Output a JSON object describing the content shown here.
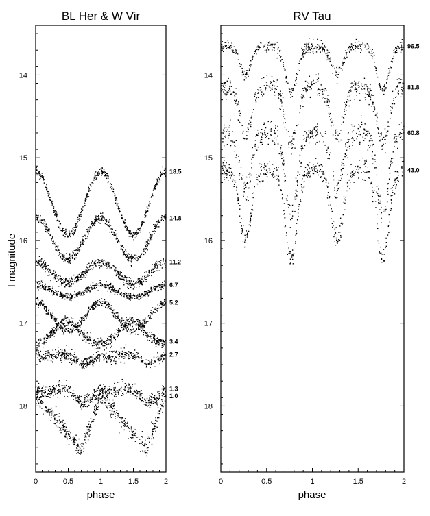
{
  "chart_data": [
    {
      "type": "scatter",
      "title": "BL Her  &  W Vir",
      "xlabel": "phase",
      "ylabel": "I magnitude",
      "xlim": [
        0,
        2
      ],
      "ylim": [
        18.8,
        13.4
      ],
      "y_inverted": true,
      "x_ticks": [
        "0",
        "0.5",
        "1",
        "1.5",
        "2"
      ],
      "y_ticks": [
        "14",
        "15",
        "16",
        "17",
        "18"
      ],
      "series": [
        {
          "name": "18.5",
          "shape": "sinusoid",
          "mean": 15.55,
          "amp": 0.38,
          "tri": 0,
          "scatter": 0.025
        },
        {
          "name": "14.8",
          "shape": "sinusoid",
          "mean": 15.98,
          "amp": 0.25,
          "tri": 0,
          "scatter": 0.03
        },
        {
          "name": "11.2",
          "shape": "sinusoid",
          "mean": 16.39,
          "amp": 0.13,
          "tri": 0,
          "scatter": 0.03
        },
        {
          "name": "6.7",
          "shape": "sinusoid",
          "mean": 16.61,
          "amp": 0.07,
          "tri": 0,
          "scatter": 0.02
        },
        {
          "name": "5.2",
          "shape": "sinusoid",
          "mean": 16.92,
          "amp": 0.17,
          "tri": 0,
          "scatter": 0.025
        },
        {
          "name": "3.4",
          "shape": "sawtooth",
          "mean": 17.12,
          "amp": 0.26,
          "tri": 0.3,
          "scatter": 0.03
        },
        {
          "name": "2.7",
          "shape": "sawtooth",
          "mean": 17.42,
          "amp": 0.2,
          "tri": 0.6,
          "scatter": 0.035
        },
        {
          "name": "1.3",
          "shape": "sawtooth",
          "mean": 17.85,
          "amp": 0.28,
          "tri": 0.6,
          "scatter": 0.04
        },
        {
          "name": "1.0",
          "shape": "sawtooth",
          "mean": 18.2,
          "amp": 0.32,
          "tri": 1.0,
          "scatter": 0.05
        }
      ]
    },
    {
      "type": "scatter",
      "title": "RV Tau",
      "xlabel": "phase",
      "ylabel": "",
      "xlim": [
        0,
        2
      ],
      "ylim": [
        18.8,
        13.4
      ],
      "y_inverted": true,
      "x_ticks": [
        "0",
        "0.5",
        "1",
        "1.5",
        "2"
      ],
      "y_ticks": [
        "14",
        "15",
        "16",
        "17",
        "18"
      ],
      "series": [
        {
          "name": "96.5",
          "shape": "rvtau",
          "base": 13.65,
          "depth1": 0.35,
          "depth2": 0.55,
          "scatter": 0.035
        },
        {
          "name": "81.8",
          "shape": "rvtau",
          "base": 14.15,
          "depth1": 0.6,
          "depth2": 0.7,
          "scatter": 0.06
        },
        {
          "name": "60.8",
          "shape": "rvtau",
          "base": 14.7,
          "depth1": 0.7,
          "depth2": 1.0,
          "scatter": 0.07
        },
        {
          "name": "43.0",
          "shape": "rvtau",
          "base": 15.15,
          "depth1": 0.85,
          "depth2": 1.05,
          "scatter": 0.06
        }
      ]
    }
  ]
}
